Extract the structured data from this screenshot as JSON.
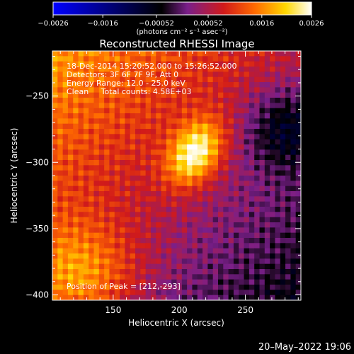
{
  "chart_data": {
    "type": "heatmap",
    "title": "Reconstructed RHESSI Image",
    "xlabel": "Heliocentric X (arcsec)",
    "ylabel": "Heliocentric Y (arcsec)",
    "xlim": [
      104,
      292
    ],
    "ylim": [
      -404,
      -216
    ],
    "x_ticks": [
      150,
      200,
      250
    ],
    "y_ticks": [
      -250,
      -300,
      -350,
      -400
    ],
    "x_tick_labels": [
      "150",
      "200",
      "250"
    ],
    "y_tick_labels": [
      "−250",
      "−300",
      "−350",
      "−400"
    ],
    "colorbar": {
      "range": [
        -0.0026,
        0.0026
      ],
      "tick_values": [
        -0.0026,
        -0.0016,
        -0.00052,
        0.00052,
        0.0016,
        0.0026
      ],
      "tick_labels": [
        "−0.0026",
        "−0.0016",
        "−0.00052",
        "0.00052",
        "0.0016",
        "0.0026"
      ],
      "unit_label": "(photons cm⁻² s⁻¹ asec⁻²)",
      "colormap": [
        "#0000ff",
        "#000000",
        "#7a1f8a",
        "#d11a1a",
        "#ff6a00",
        "#ffd800",
        "#ffffff"
      ]
    },
    "peak": {
      "x": 212,
      "y": -293
    },
    "annotations": [
      "18-Dec-2014 15:20:52.000 to 15:26:52.000",
      "Detectors: 3F 6F 7F 9F, Att 0",
      "Energy Range: 12.0 - 25.0 keV",
      "Clean     Total counts: 4.58E+03",
      "Position of Peak = [212,-293]"
    ]
  },
  "footer_text": "20–May–2022 19:06"
}
